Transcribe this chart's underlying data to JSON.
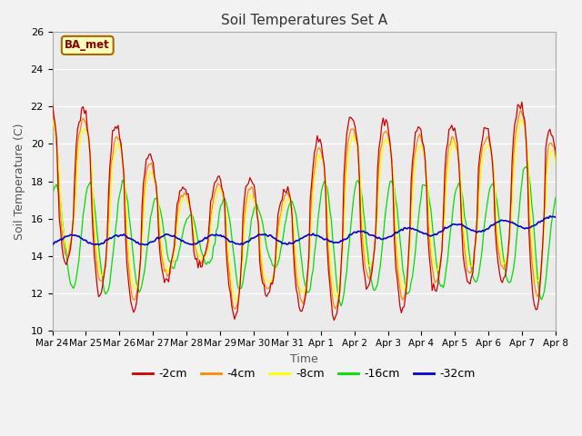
{
  "title": "Soil Temperatures Set A",
  "xlabel": "Time",
  "ylabel": "Soil Temperature (C)",
  "ylim": [
    10,
    26
  ],
  "annotation": "BA_met",
  "legend": [
    "-2cm",
    "-4cm",
    "-8cm",
    "-16cm",
    "-32cm"
  ],
  "colors": [
    "#cc0000",
    "#ff8800",
    "#ffff00",
    "#00dd00",
    "#0000cc"
  ],
  "bg_color": "#e8e8e8",
  "plot_bg": "#ebebeb",
  "xtick_labels": [
    "Mar 24",
    "Mar 25",
    "Mar 26",
    "Mar 27",
    "Mar 28",
    "Mar 29",
    "Mar 30",
    "Mar 31",
    "Apr 1",
    "Apr 2",
    "Apr 3",
    "Apr 4",
    "Apr 5",
    "Apr 6",
    "Apr 7",
    "Apr 8"
  ]
}
